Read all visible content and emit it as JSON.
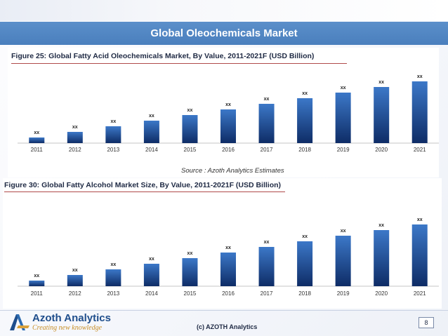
{
  "header": {
    "title": "Global Oleochemicals Market"
  },
  "figures": [
    {
      "caption": "Figure 25: Global Fatty Acid Oleochemicals Market, By Value, 2011-2021F (USD Billion)"
    },
    {
      "caption": "Figure 30: Global Fatty Alcohol Market Size, By Value, 2011-2021F (USD Billion)"
    }
  ],
  "source_note": "Source : Azoth Analytics Estimates",
  "footer": {
    "brand": "Azoth Analytics",
    "tagline": "Creating new knowledge",
    "copyright": "(c) AZOTH Analytics",
    "page": "8"
  },
  "colors": {
    "bar_top": "#3c78c8",
    "bar_bottom": "#0e2c66",
    "header": "#4f83c2"
  },
  "chart_data": [
    {
      "type": "bar",
      "title": "Figure 25: Global Fatty Acid Oleochemicals Market, By Value, 2011-2021F (USD Billion)",
      "categories": [
        "2011",
        "2012",
        "2013",
        "2014",
        "2015",
        "2016",
        "2017",
        "2018",
        "2019",
        "2020",
        "2021"
      ],
      "values": [
        1.0,
        2.0,
        3.0,
        4.0,
        5.0,
        6.0,
        7.0,
        8.0,
        9.0,
        10.0,
        11.0
      ],
      "data_labels": [
        "xx",
        "xx",
        "xx",
        "xx",
        "xx",
        "xx",
        "xx",
        "xx",
        "xx",
        "xx",
        "xx"
      ],
      "ylim": [
        0,
        12.5
      ],
      "grid": false,
      "legend": "none"
    },
    {
      "type": "bar",
      "title": "Figure 30: Global Fatty Alcohol Market Size, By Value, 2011-2021F (USD Billion)",
      "categories": [
        "2011",
        "2012",
        "2013",
        "2014",
        "2015",
        "2016",
        "2017",
        "2018",
        "2019",
        "2020",
        "2021"
      ],
      "values": [
        1.0,
        2.0,
        3.0,
        4.0,
        5.0,
        6.0,
        7.0,
        8.0,
        9.0,
        10.0,
        11.0
      ],
      "data_labels": [
        "xx",
        "xx",
        "xx",
        "xx",
        "xx",
        "xx",
        "xx",
        "xx",
        "xx",
        "xx",
        "xx"
      ],
      "ylim": [
        0,
        12.5
      ],
      "grid": false,
      "legend": "none"
    }
  ]
}
